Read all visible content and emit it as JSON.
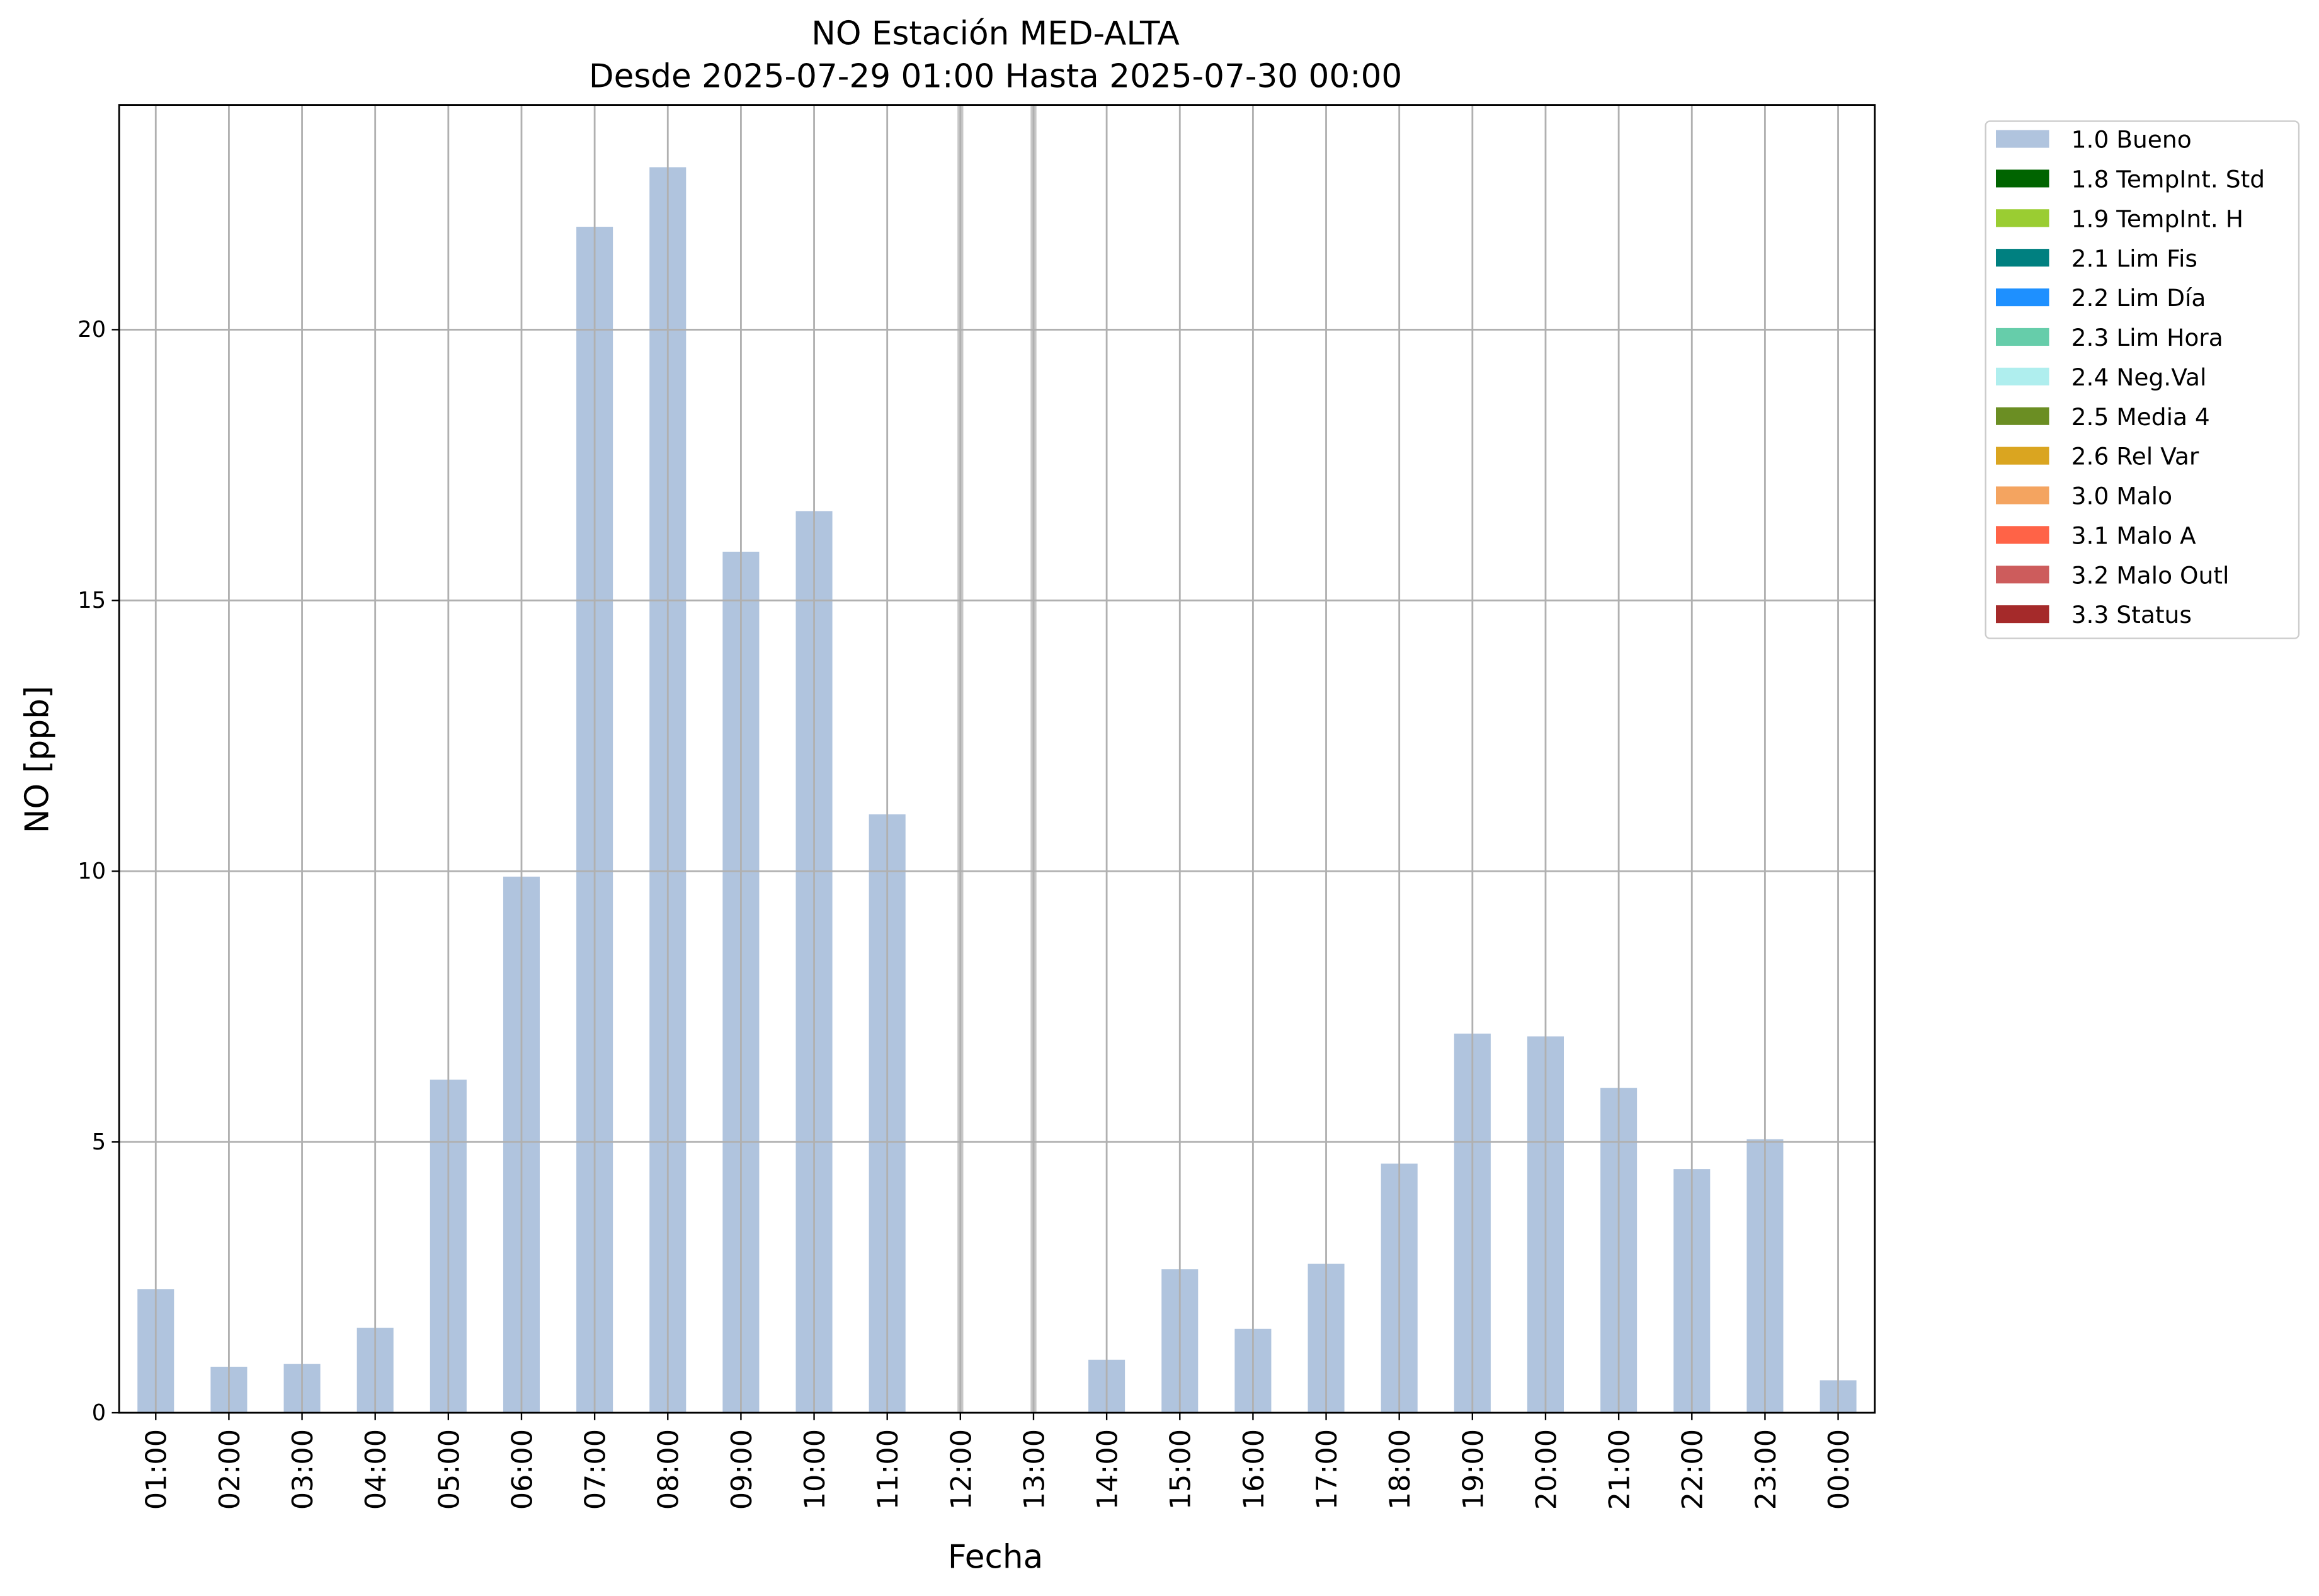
{
  "chart_data": {
    "type": "bar",
    "title": "NO Estación MED-ALTA",
    "subtitle": "Desde 2025-07-29 01:00 Hasta 2025-07-30 00:00",
    "x_label": "Fecha",
    "y_label": "NO [ppb]",
    "categories": [
      "01:00",
      "02:00",
      "03:00",
      "04:00",
      "05:00",
      "06:00",
      "07:00",
      "08:00",
      "09:00",
      "10:00",
      "11:00",
      "12:00",
      "13:00",
      "14:00",
      "15:00",
      "16:00",
      "17:00",
      "18:00",
      "19:00",
      "20:00",
      "21:00",
      "22:00",
      "23:00",
      "00:00"
    ],
    "series": [
      {
        "name": "1.0 Bueno",
        "color": "#b0c4de",
        "values": [
          2.28,
          0.85,
          0.9,
          1.57,
          6.15,
          9.9,
          21.9,
          23.0,
          15.9,
          16.65,
          11.05,
          null,
          null,
          0.98,
          2.65,
          1.55,
          2.75,
          4.6,
          7.0,
          6.95,
          6.0,
          4.5,
          5.05,
          0.6
        ]
      },
      {
        "name": "1.8 TempInt. Std",
        "color": "#006400"
      },
      {
        "name": "1.9 TempInt. H",
        "color": "#9acd32"
      },
      {
        "name": "2.1 Lim Fis",
        "color": "#008080"
      },
      {
        "name": "2.2 Lim Día",
        "color": "#1e90ff"
      },
      {
        "name": "2.3 Lim Hora",
        "color": "#66cdaa"
      },
      {
        "name": "2.4 Neg.Val",
        "color": "#afeeee"
      },
      {
        "name": "2.5 Media 4",
        "color": "#6b8e23"
      },
      {
        "name": "2.6 Rel Var",
        "color": "#daa520"
      },
      {
        "name": "3.0 Malo",
        "color": "#f4a460"
      },
      {
        "name": "3.1 Malo A",
        "color": "#ff6347"
      },
      {
        "name": "3.2 Malo Outl",
        "color": "#cd5c5c"
      },
      {
        "name": "3.3 Status",
        "color": "#a52a2a"
      }
    ],
    "ylim": [
      0,
      24.15
    ],
    "yticks": [
      0,
      5,
      10,
      15,
      20
    ],
    "grid": true,
    "legend": "outside-upper-right"
  }
}
